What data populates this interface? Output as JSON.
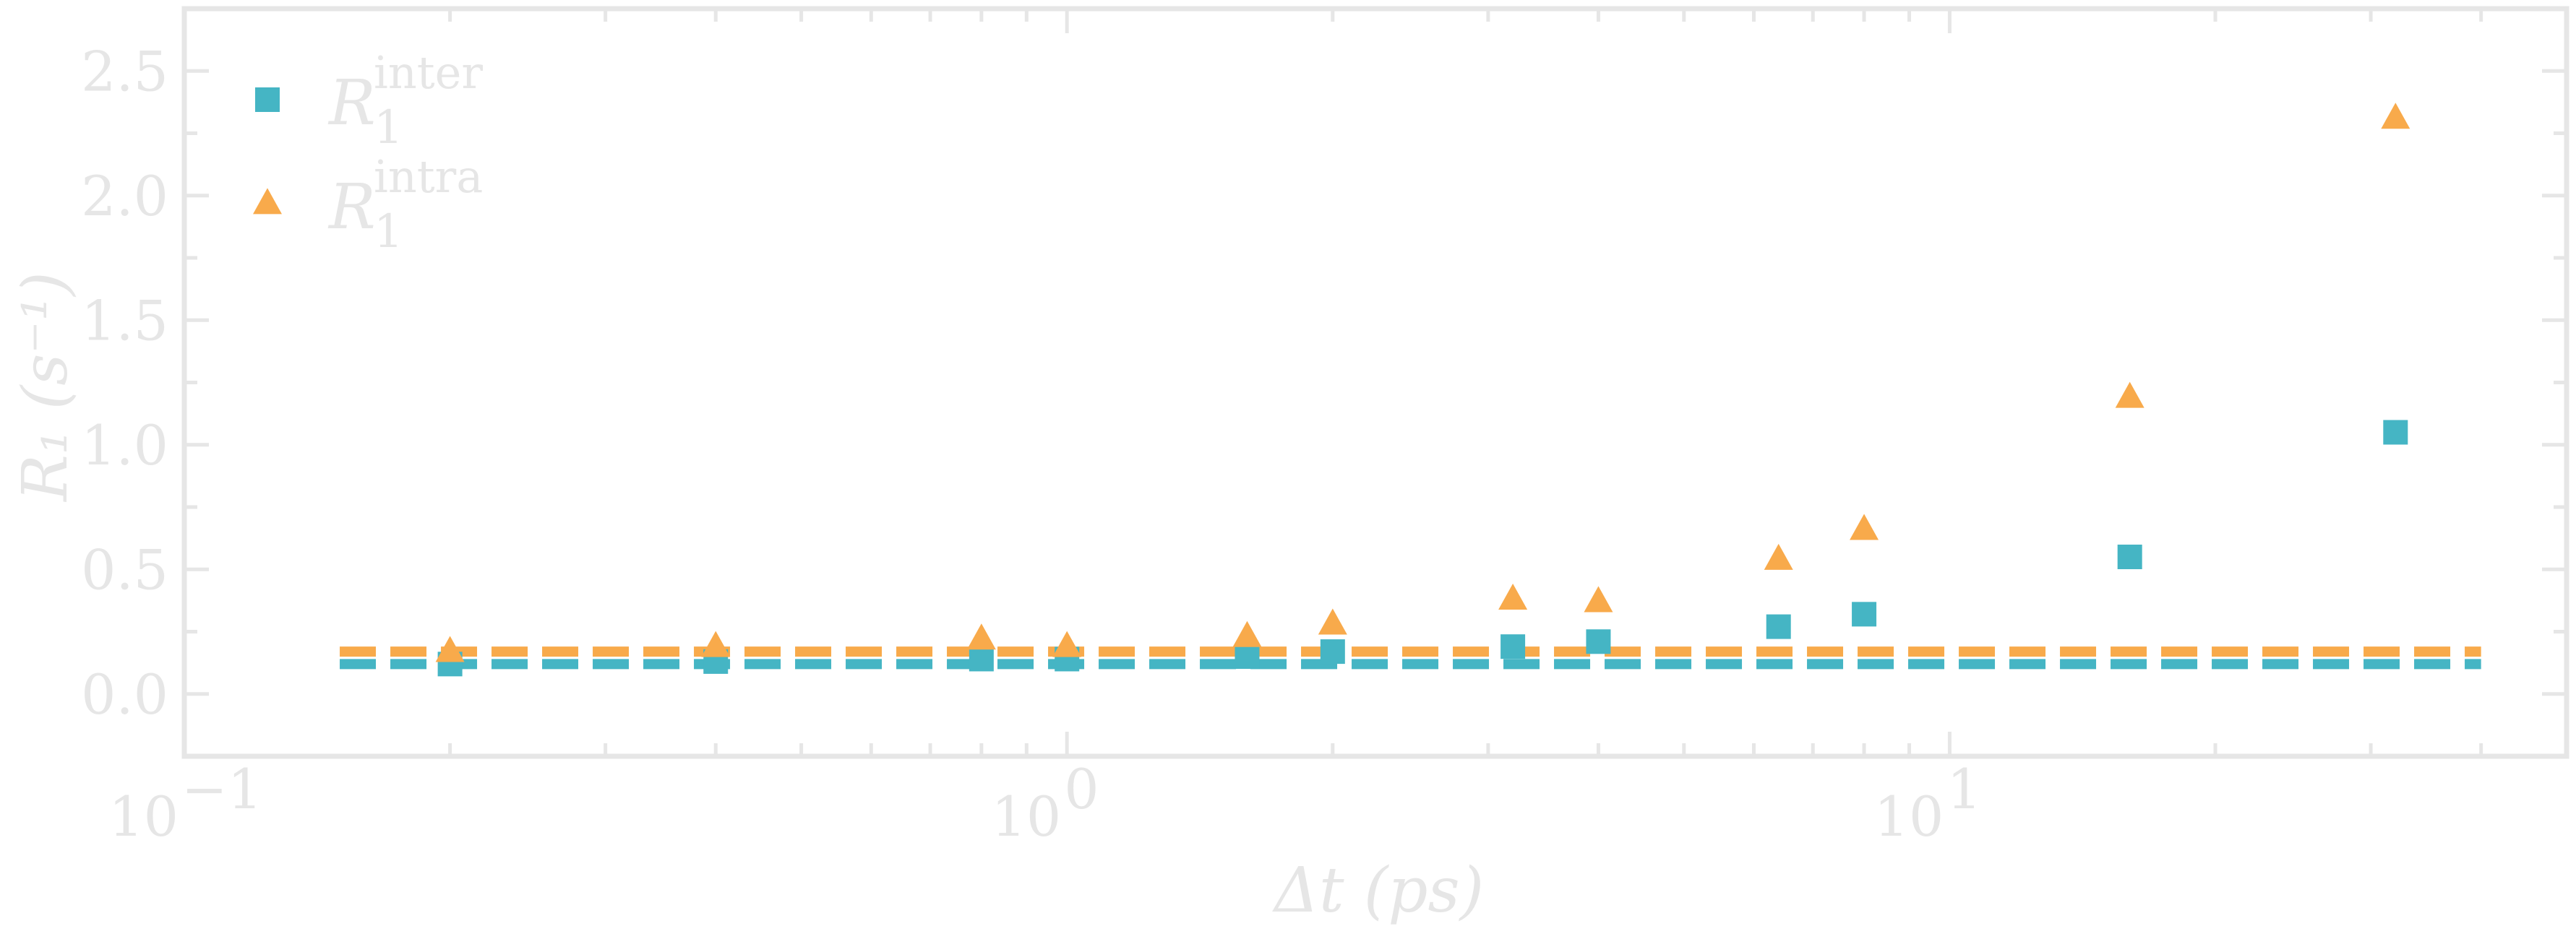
{
  "chart_data": {
    "type": "scatter",
    "title": "",
    "xlabel": "Δt (ps)",
    "ylabel": "R₁ (s⁻¹)",
    "xscale": "log",
    "xlim": [
      0.1,
      50
    ],
    "ylim": [
      -0.25,
      2.75
    ],
    "grid": false,
    "legend_position": "top-left",
    "x_ticks": [
      {
        "value": 0.1,
        "base": "10",
        "exp": "−1"
      },
      {
        "value": 1,
        "base": "10",
        "exp": "0"
      },
      {
        "value": 10,
        "base": "10",
        "exp": "1"
      }
    ],
    "y_ticks": [
      {
        "value": 0.0,
        "label": "0.0"
      },
      {
        "value": 0.5,
        "label": "0.5"
      },
      {
        "value": 1.0,
        "label": "1.0"
      },
      {
        "value": 1.5,
        "label": "1.5"
      },
      {
        "value": 2.0,
        "label": "2.0"
      },
      {
        "value": 2.5,
        "label": "2.5"
      }
    ],
    "series": [
      {
        "key": "inter",
        "legend_sym": "R",
        "legend_sub": "1",
        "legend_sup": "inter",
        "marker": "square",
        "color": "#45b5c4",
        "x": [
          0.2,
          0.4,
          0.8,
          1.0,
          1.6,
          2.0,
          3.2,
          4.0,
          6.4,
          8.0,
          16,
          32
        ],
        "y": [
          0.12,
          0.13,
          0.14,
          0.14,
          0.15,
          0.17,
          0.19,
          0.21,
          0.27,
          0.32,
          0.55,
          1.05
        ],
        "reference": 0.12
      },
      {
        "key": "intra",
        "legend_sym": "R",
        "legend_sub": "1",
        "legend_sup": "intra",
        "marker": "triangle",
        "color": "#f8aa4b",
        "x": [
          0.2,
          0.4,
          0.8,
          1.0,
          1.6,
          2.0,
          3.2,
          4.0,
          6.4,
          8.0,
          16,
          32
        ],
        "y": [
          0.17,
          0.19,
          0.22,
          0.19,
          0.23,
          0.28,
          0.38,
          0.37,
          0.54,
          0.66,
          1.19,
          2.31
        ],
        "reference": 0.17
      }
    ]
  }
}
